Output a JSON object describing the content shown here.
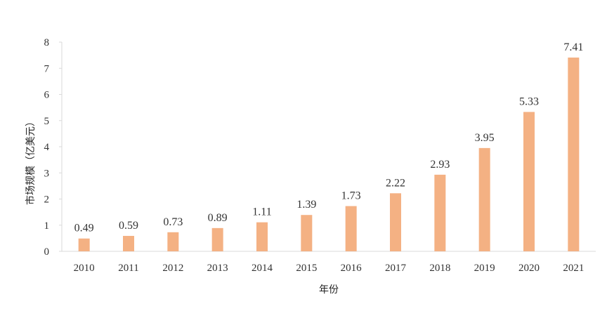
{
  "chart_data": {
    "type": "bar",
    "title": "",
    "xlabel": "年份",
    "ylabel": "市场规模（亿美元）",
    "categories": [
      "2010",
      "2011",
      "2012",
      "2013",
      "2014",
      "2015",
      "2016",
      "2017",
      "2018",
      "2019",
      "2020",
      "2021"
    ],
    "values": [
      0.49,
      0.59,
      0.73,
      0.89,
      1.11,
      1.39,
      1.73,
      2.22,
      2.93,
      3.95,
      5.33,
      7.41
    ],
    "value_labels": [
      "0.49",
      "0.59",
      "0.73",
      "0.89",
      "1.11",
      "1.39",
      "1.73",
      "2.22",
      "2.93",
      "3.95",
      "5.33",
      "7.41"
    ],
    "ylim": [
      0,
      8
    ],
    "yticks": [
      "0",
      "1",
      "2",
      "3",
      "4",
      "5",
      "6",
      "7",
      "8"
    ],
    "grid": false,
    "legend": "none",
    "bar_color": "#F4B183",
    "axis_color": "#D9D9D9"
  }
}
